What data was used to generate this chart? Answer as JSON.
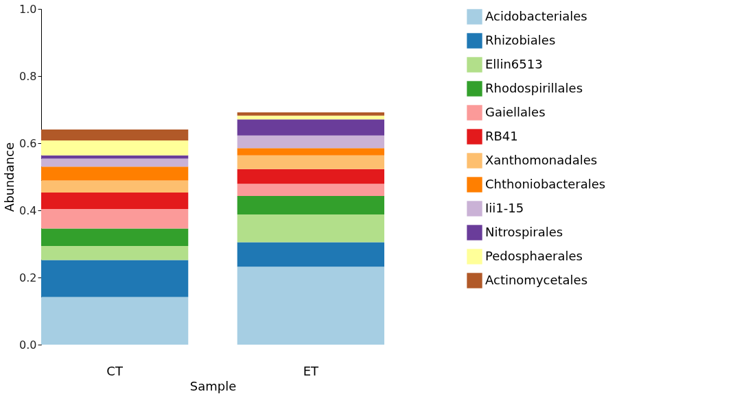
{
  "chart_data": {
    "type": "bar",
    "stacked": true,
    "xlabel": "Sample",
    "ylabel": "Abundance",
    "categories": [
      "CT",
      "ET"
    ],
    "ylim": [
      0,
      1
    ],
    "yticks": [
      {
        "value": 0,
        "label": "0.0"
      },
      0.2,
      0.4,
      0.6,
      0.8,
      {
        "value": 1,
        "label": "1.0"
      }
    ],
    "grid": false,
    "legend": "right",
    "series": [
      {
        "name": "Acidobacteriales",
        "color": "#a6cee3",
        "values": [
          0.142,
          0.232
        ]
      },
      {
        "name": "Rhizobiales",
        "color": "#1f78b4",
        "values": [
          0.11,
          0.073
        ]
      },
      {
        "name": "Ellin6513",
        "color": "#b2df8a",
        "values": [
          0.042,
          0.083
        ]
      },
      {
        "name": "Rhodospirillales",
        "color": "#33a02c",
        "values": [
          0.052,
          0.055
        ]
      },
      {
        "name": "Gaiellales",
        "color": "#fb9a99",
        "values": [
          0.058,
          0.036
        ]
      },
      {
        "name": "RB41",
        "color": "#e31a1c",
        "values": [
          0.049,
          0.044
        ]
      },
      {
        "name": "Xanthomonadales",
        "color": "#fdbf6f",
        "values": [
          0.036,
          0.041
        ]
      },
      {
        "name": "Chthoniobacterales",
        "color": "#ff7f00",
        "values": [
          0.041,
          0.021
        ]
      },
      {
        "name": "Iii1-15",
        "color": "#cab2d6",
        "values": [
          0.024,
          0.038
        ]
      },
      {
        "name": "Nitrospirales",
        "color": "#6a3d9a",
        "values": [
          0.01,
          0.048
        ]
      },
      {
        "name": "Pedosphaerales",
        "color": "#ffff99",
        "values": [
          0.044,
          0.011
        ]
      },
      {
        "name": "Actinomycetales",
        "color": "#b15928",
        "values": [
          0.033,
          0.01
        ]
      }
    ]
  }
}
